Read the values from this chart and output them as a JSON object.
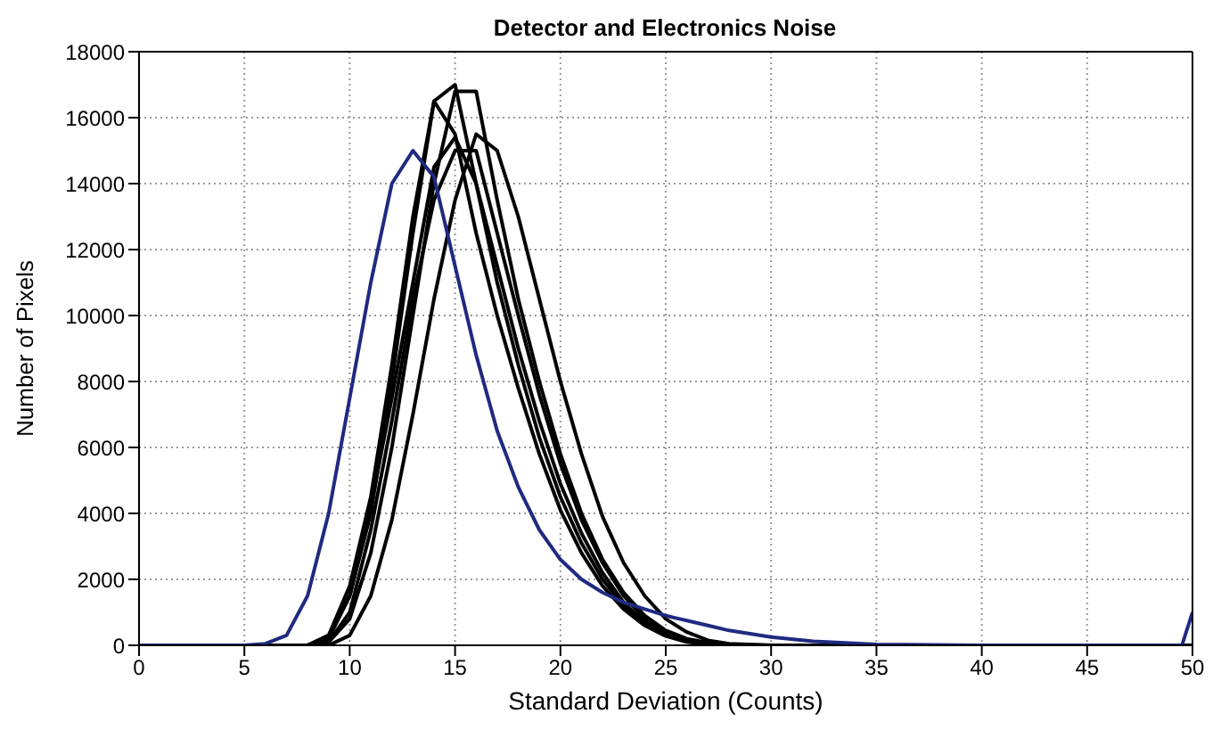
{
  "chart_data": {
    "type": "line",
    "title": "Detector and Electronics Noise",
    "xlabel": "Standard Deviation (Counts)",
    "ylabel": "Number of Pixels",
    "x": [
      0,
      5,
      6,
      7,
      8,
      9,
      10,
      11,
      12,
      13,
      14,
      15,
      16,
      17,
      18,
      19,
      20,
      21,
      22,
      23,
      24,
      25,
      26,
      27,
      28,
      30,
      32,
      35,
      40,
      45,
      49.5,
      50
    ],
    "series": [
      {
        "color": "#000000",
        "values": [
          0,
          0,
          0,
          0,
          0,
          300,
          1500,
          4000,
          8000,
          12500,
          16500,
          17000,
          14000,
          11000,
          8500,
          6300,
          4500,
          3100,
          2000,
          1200,
          650,
          300,
          120,
          40,
          0,
          0,
          0,
          0,
          0,
          0,
          0,
          0
        ]
      },
      {
        "color": "#000000",
        "values": [
          0,
          0,
          0,
          0,
          0,
          100,
          800,
          2800,
          6000,
          10000,
          14000,
          16800,
          16800,
          13500,
          10500,
          8000,
          5800,
          4000,
          2600,
          1600,
          900,
          450,
          200,
          80,
          20,
          0,
          0,
          0,
          0,
          0,
          0,
          0
        ]
      },
      {
        "color": "#000000",
        "values": [
          0,
          0,
          0,
          0,
          0,
          300,
          1800,
          4500,
          8500,
          13000,
          16500,
          15500,
          12500,
          10000,
          7800,
          5800,
          4100,
          2800,
          1800,
          1100,
          600,
          280,
          100,
          30,
          0,
          0,
          0,
          0,
          0,
          0,
          0,
          0
        ]
      },
      {
        "color": "#000000",
        "values": [
          0,
          0,
          0,
          0,
          0,
          200,
          1500,
          4200,
          7500,
          11000,
          14500,
          15400,
          14000,
          11500,
          9000,
          6800,
          4900,
          3400,
          2200,
          1300,
          700,
          330,
          130,
          40,
          0,
          0,
          0,
          0,
          0,
          0,
          0,
          0
        ]
      },
      {
        "color": "#000000",
        "values": [
          0,
          0,
          0,
          0,
          0,
          0,
          300,
          1500,
          3800,
          7000,
          10500,
          13500,
          15500,
          15000,
          13000,
          10500,
          8000,
          5800,
          3900,
          2500,
          1500,
          800,
          400,
          150,
          50,
          0,
          0,
          0,
          0,
          0,
          0,
          0
        ]
      },
      {
        "color": "#000000",
        "values": [
          0,
          0,
          0,
          0,
          0,
          100,
          1000,
          3500,
          6800,
          10500,
          13500,
          15000,
          15000,
          12500,
          10000,
          7600,
          5500,
          3800,
          2500,
          1500,
          800,
          400,
          150,
          50,
          0,
          0,
          0,
          0,
          0,
          0,
          0,
          0
        ]
      },
      {
        "color": "#1f2a80",
        "values": [
          0,
          0,
          50,
          300,
          1500,
          4000,
          7500,
          11000,
          14000,
          15000,
          14200,
          11500,
          8800,
          6500,
          4800,
          3500,
          2600,
          2000,
          1600,
          1300,
          1100,
          900,
          750,
          600,
          450,
          250,
          120,
          30,
          0,
          0,
          0,
          1000
        ]
      }
    ],
    "xlim": [
      0,
      50
    ],
    "xticks": [
      0,
      5,
      10,
      15,
      20,
      25,
      30,
      35,
      40,
      45,
      50
    ],
    "ylim": [
      0,
      18000
    ],
    "yticks": [
      0,
      2000,
      4000,
      6000,
      8000,
      10000,
      12000,
      14000,
      16000,
      18000
    ],
    "grid": true,
    "marker": "none",
    "line_style": "solid",
    "legend": false
  }
}
